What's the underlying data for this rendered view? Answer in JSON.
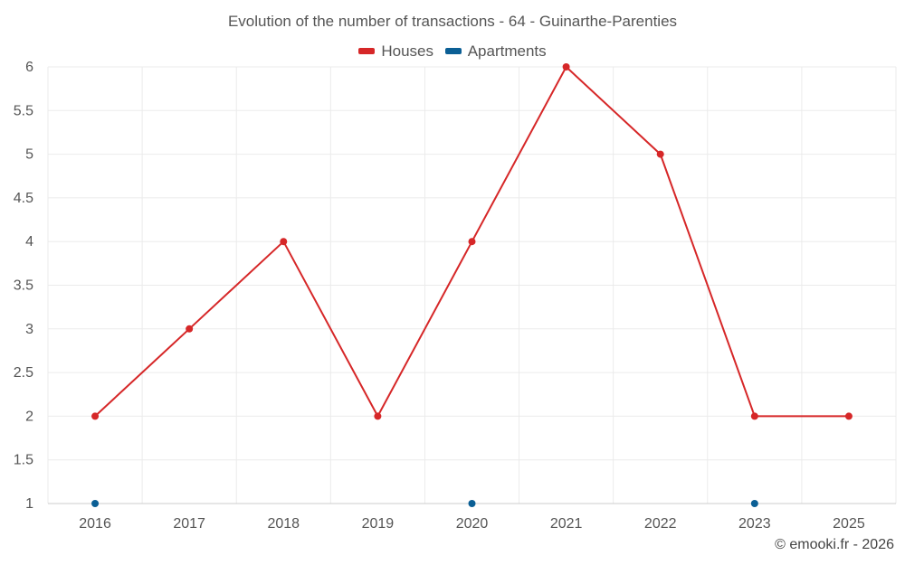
{
  "chart_data": {
    "type": "line",
    "title": "Evolution of the number of transactions - 64 - Guinarthe-Parenties",
    "categories": [
      "2016",
      "2017",
      "2018",
      "2019",
      "2020",
      "2021",
      "2022",
      "2023",
      "2025"
    ],
    "series": [
      {
        "name": "Houses",
        "color": "#d62728",
        "values": [
          2,
          3,
          4,
          2,
          4,
          6,
          5,
          2,
          2
        ],
        "line": true
      },
      {
        "name": "Apartments",
        "color": "#0b5f95",
        "values": [
          1,
          null,
          null,
          null,
          1,
          null,
          null,
          1,
          null
        ],
        "line": false
      }
    ],
    "ylim": [
      1,
      6
    ],
    "yticks": [
      "1",
      "1.5",
      "2",
      "2.5",
      "3",
      "3.5",
      "4",
      "4.5",
      "5",
      "5.5",
      "6"
    ],
    "grid": true,
    "legend_position": "top-center"
  },
  "credit": "© emooki.fr - 2026"
}
